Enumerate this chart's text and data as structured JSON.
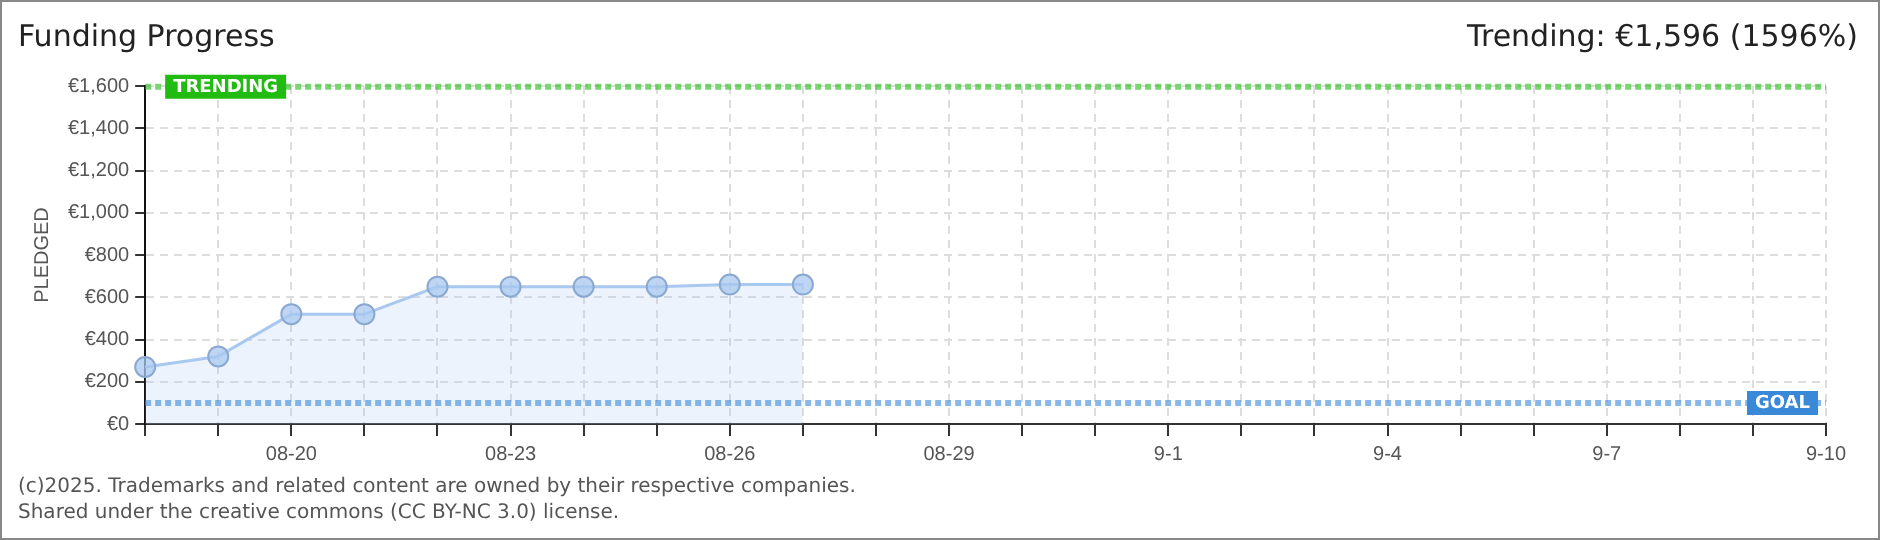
{
  "chart_data": {
    "type": "area",
    "title": "Funding Progress",
    "subtitle": "Trending: €1,596 (1596%)",
    "ylabel": "PLEDGED",
    "categories": [
      null,
      null,
      "08-20",
      null,
      null,
      "08-23",
      null,
      null,
      "08-26",
      null,
      null,
      "08-29",
      null,
      null,
      "9-1",
      null,
      null,
      "9-4",
      null,
      null,
      "9-7",
      null,
      null,
      "9-10"
    ],
    "series": [
      {
        "color": "#a8c8f0",
        "values": [
          270,
          320,
          520,
          520,
          650,
          650,
          650,
          650,
          660,
          660,
          null,
          null,
          null,
          null,
          null,
          null,
          null,
          null,
          null,
          null,
          null,
          null,
          null,
          null
        ]
      }
    ],
    "ylim": [
      0,
      1600
    ],
    "yticks": [
      {
        "value": 0,
        "label": "€0"
      },
      {
        "value": 200,
        "label": "€200"
      },
      {
        "value": 400,
        "label": "€400"
      },
      {
        "value": 600,
        "label": "€600"
      },
      {
        "value": 800,
        "label": "€800"
      },
      {
        "value": 1000,
        "label": "€1,000"
      },
      {
        "value": 1200,
        "label": "€1,200"
      },
      {
        "value": 1400,
        "label": "€1,400"
      },
      {
        "value": 1600,
        "label": "€1,600"
      }
    ],
    "ref_lines": [
      {
        "axis": "y",
        "value": 1596,
        "label": "TRENDING",
        "color": "#22bb11",
        "line_style": "dotted"
      },
      {
        "axis": "y",
        "value": 100,
        "label": "GOAL",
        "color": "#3a88d8",
        "line_style": "dotted"
      }
    ],
    "grid": true,
    "marker": "circle",
    "legend": false,
    "annotations": [
      "(c)2025. Trademarks and related content are owned by their respective companies.",
      "Shared under the creative commons (CC BY-NC 3.0) license."
    ]
  }
}
